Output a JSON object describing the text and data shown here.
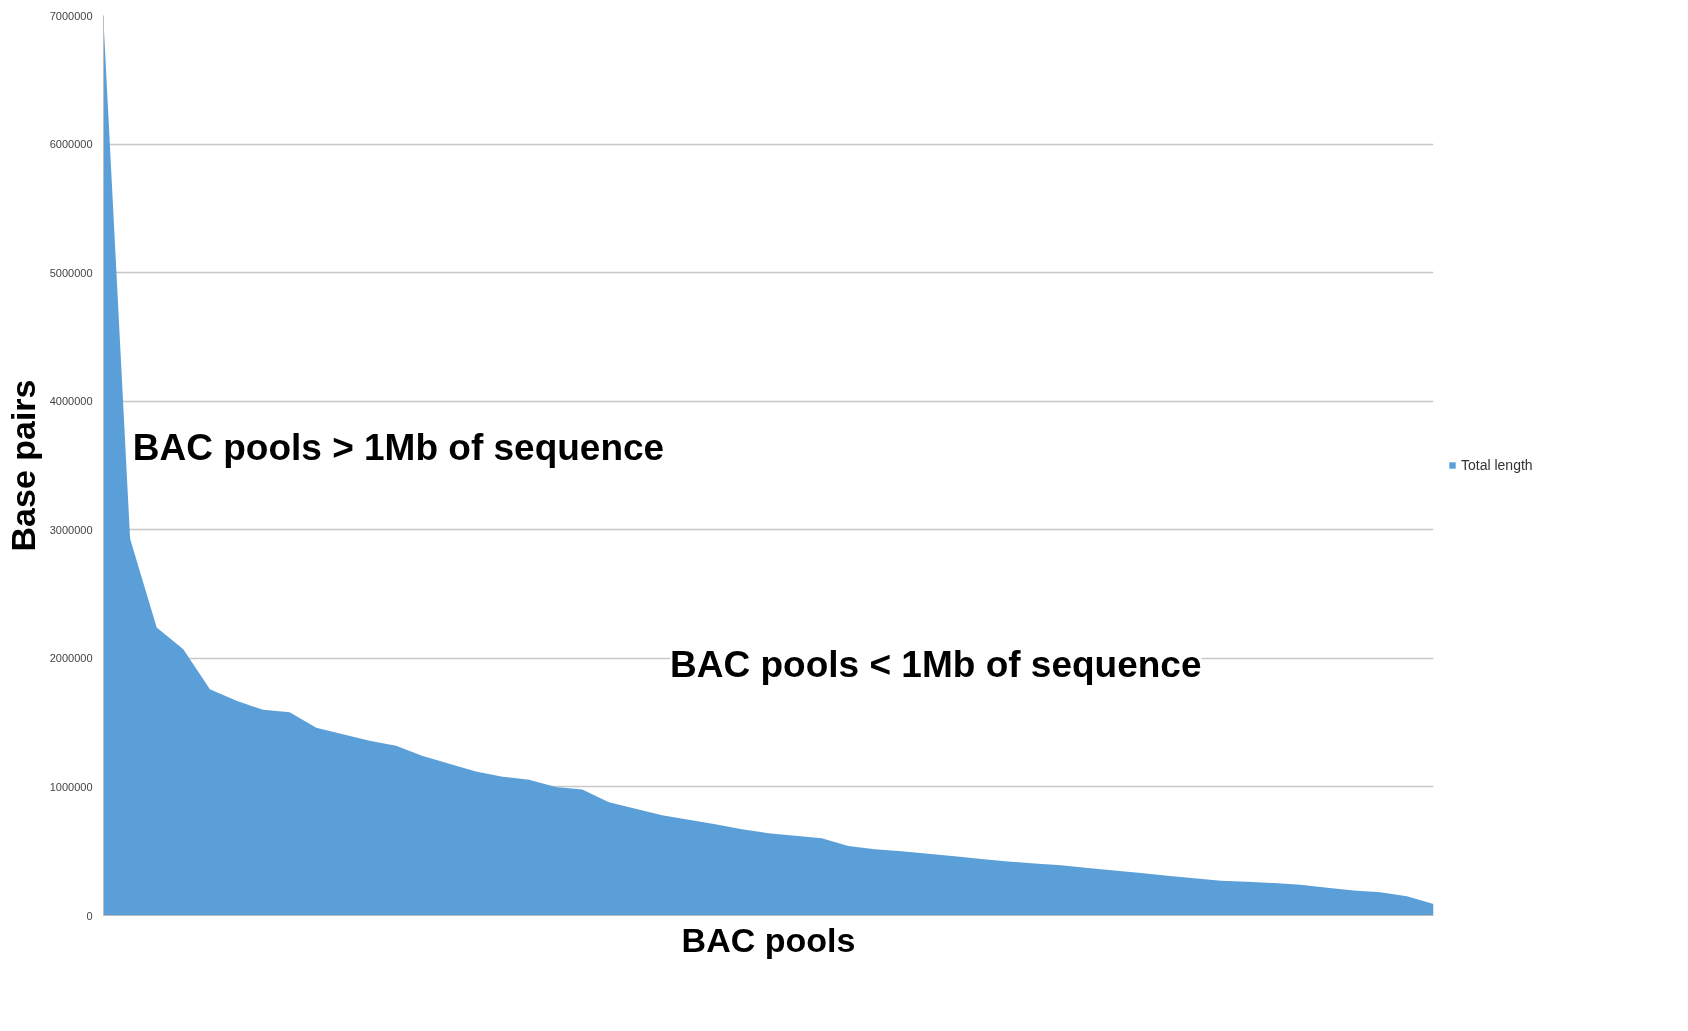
{
  "chart_data": {
    "type": "area",
    "xlabel": "BAC pools",
    "ylabel": "Base pairs",
    "annotations": [
      "BAC pools > 1Mb of sequence",
      "BAC pools < 1Mb of sequence"
    ],
    "categories": [
      null,
      null,
      null,
      null,
      null,
      null,
      null,
      null,
      null,
      null,
      null,
      null,
      null,
      null,
      null,
      null,
      null,
      null,
      null,
      null,
      null,
      null,
      null,
      null,
      null,
      null,
      null,
      null,
      null,
      null,
      null,
      null,
      null,
      null,
      null,
      null,
      null,
      null,
      null,
      null,
      null,
      null,
      null,
      null,
      null,
      null,
      null,
      null,
      null,
      null,
      null
    ],
    "ylim": [
      0,
      7000000
    ],
    "yticks": [
      0,
      1000000,
      2000000,
      3000000,
      4000000,
      5000000,
      6000000,
      7000000
    ],
    "grid": "y",
    "legend": "right",
    "series": [
      {
        "name": "Total length",
        "color": "#5a9fd8",
        "values": [
          6960000,
          2930000,
          2240000,
          2070000,
          1760000,
          1670000,
          1600000,
          1580000,
          1460000,
          1410000,
          1360000,
          1320000,
          1240000,
          1180000,
          1120000,
          1080000,
          1055000,
          1000000,
          980000,
          880000,
          830000,
          780000,
          745000,
          710000,
          670000,
          640000,
          620000,
          600000,
          540000,
          515000,
          500000,
          480000,
          460000,
          440000,
          420000,
          405000,
          390000,
          370000,
          350000,
          330000,
          310000,
          290000,
          270000,
          262000,
          252000,
          240000,
          215000,
          195000,
          180000,
          150000,
          90000
        ]
      }
    ]
  }
}
